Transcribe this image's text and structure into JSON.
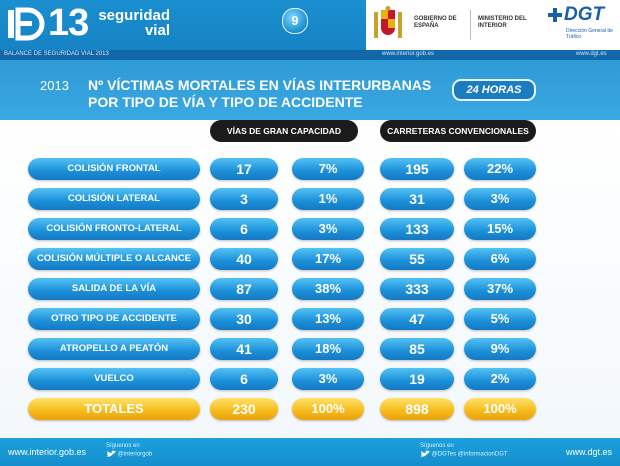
{
  "header": {
    "logo_number": "13",
    "logo_text_line1": "seguridad",
    "logo_text_line2": "vial",
    "page_number": "9",
    "gov_label": "GOBIERNO DE ESPAÑA",
    "ministry_label": "MINISTERIO DEL INTERIOR",
    "dgt_label": "DGT",
    "dgt_sub": "Dirección General de Tráfico",
    "subbar_left": "BALANCE DE SEGURIDAD VIAL 2013",
    "subbar_center": "www.interior.gob.es",
    "subbar_right": "www.dgt.es"
  },
  "title": {
    "year": "2013",
    "line1": "Nº VÍCTIMAS MORTALES EN VÍAS INTERURBANAS",
    "line2": "POR TIPO DE VÍA Y TIPO DE ACCIDENTE",
    "badge": "24 HORAS"
  },
  "table": {
    "col_headers": [
      "VÍAS DE GRAN CAPACIDAD",
      "CARRETERAS CONVENCIONALES"
    ],
    "rows": [
      {
        "label": "COLISIÓN FRONTAL",
        "gc_num": "17",
        "gc_pct": "7%",
        "cc_num": "195",
        "cc_pct": "22%"
      },
      {
        "label": "COLISIÓN  LATERAL",
        "gc_num": "3",
        "gc_pct": "1%",
        "cc_num": "31",
        "cc_pct": "3%"
      },
      {
        "label": "COLISIÓN FRONTO-LATERAL",
        "gc_num": "6",
        "gc_pct": "3%",
        "cc_num": "133",
        "cc_pct": "15%"
      },
      {
        "label": "COLISIÓN MÚLTIPLE O ALCANCE",
        "gc_num": "40",
        "gc_pct": "17%",
        "cc_num": "55",
        "cc_pct": "6%"
      },
      {
        "label": "SALIDA DE LA VÍA",
        "gc_num": "87",
        "gc_pct": "38%",
        "cc_num": "333",
        "cc_pct": "37%"
      },
      {
        "label": "OTRO TIPO DE ACCIDENTE",
        "gc_num": "30",
        "gc_pct": "13%",
        "cc_num": "47",
        "cc_pct": "5%"
      },
      {
        "label": "ATROPELLO A PEATÓN",
        "gc_num": "41",
        "gc_pct": "18%",
        "cc_num": "85",
        "cc_pct": "9%"
      },
      {
        "label": "VUELCO",
        "gc_num": "6",
        "gc_pct": "3%",
        "cc_num": "19",
        "cc_pct": "2%"
      }
    ],
    "totals": {
      "label": "TOTALES",
      "gc_num": "230",
      "gc_pct": "100%",
      "cc_num": "898",
      "cc_pct": "100%"
    }
  },
  "footer": {
    "left_url": "www.interior.gob.es",
    "right_url": "www.dgt.es",
    "follow_label_1": "Síguenos en",
    "twitter_1": "@interiorgob",
    "follow_label_2": "Síguenos en",
    "twitter_2": "@DGTes   @informacionDGT"
  }
}
